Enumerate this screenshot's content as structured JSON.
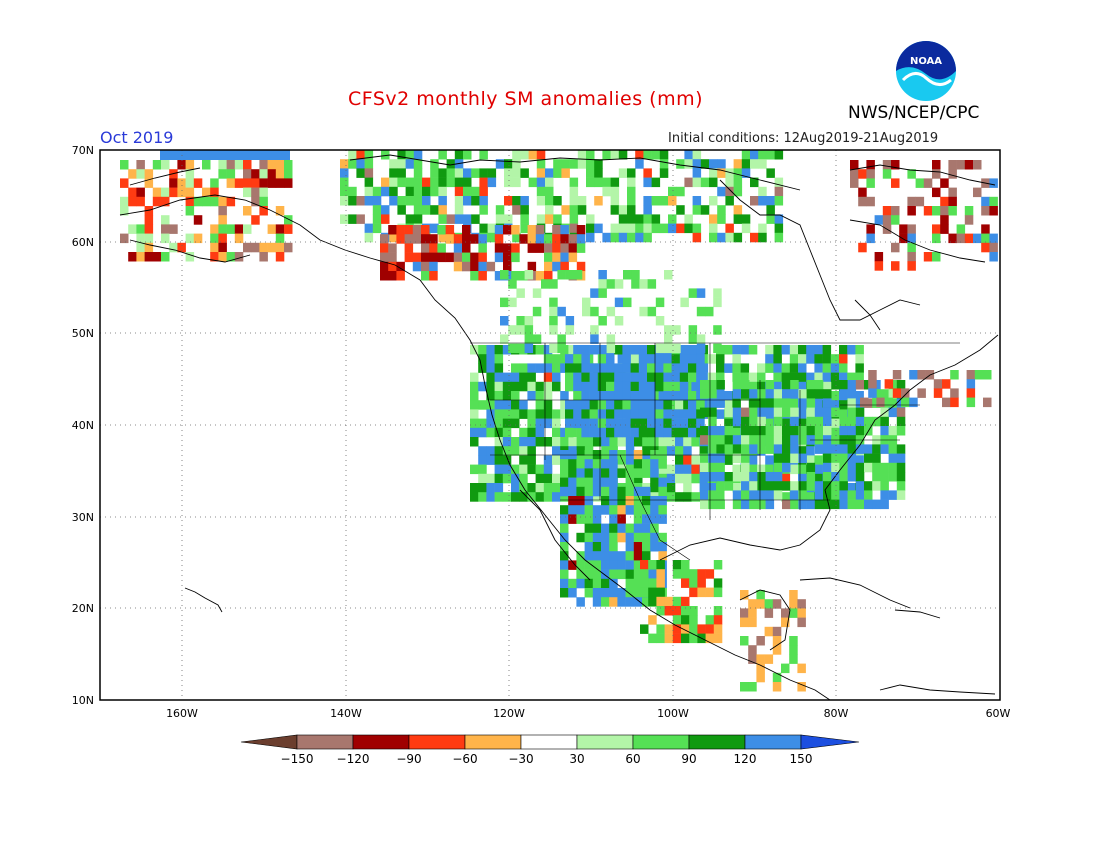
{
  "title": "CFSv2 monthly SM anomalies (mm)",
  "valid_month": "Oct 2019",
  "initial_conditions": "Initial conditions: 12Aug2019-21Aug2019",
  "agency": "NWS/NCEP/CPC",
  "logo_text": "NOAA",
  "lat_labels": [
    "70N",
    "60N",
    "50N",
    "40N",
    "30N",
    "20N",
    "10N"
  ],
  "lon_labels": [
    "160W",
    "140W",
    "120W",
    "100W",
    "80W",
    "60W"
  ],
  "colorbar": {
    "labels": [
      "−150",
      "−120",
      "−90",
      "−60",
      "−30",
      "30",
      "60",
      "90",
      "120",
      "150"
    ],
    "colors": [
      "#6b3e2e",
      "#a8776e",
      "#a00000",
      "#ff3b12",
      "#ffb44a",
      "#ffffff",
      "#b3f5a8",
      "#55e055",
      "#109a10",
      "#3d8ee6",
      "#1c4fe0"
    ]
  },
  "colors": {
    "title": "#e00000",
    "valid_month": "#2a3ad8"
  }
}
